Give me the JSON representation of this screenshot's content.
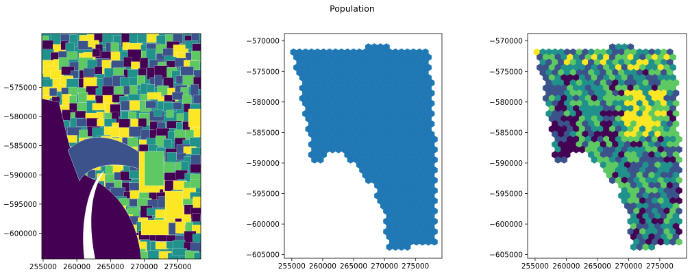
{
  "figure": {
    "suptitle": "Population"
  },
  "chart_data": [
    {
      "type": "map",
      "title": "",
      "xlabel": "",
      "ylabel": "",
      "xlim": [
        254800,
        278400
      ],
      "ylim": [
        -604400,
        -565800
      ],
      "x_ticks": [
        255000,
        260000,
        265000,
        270000,
        275000
      ],
      "x_tick_labels": [
        "255000",
        "260000",
        "265000",
        "270000",
        "275000"
      ],
      "y_ticks": [
        -575000,
        -580000,
        -585000,
        -590000,
        -595000,
        -600000
      ],
      "y_tick_labels": [
        "−575000",
        "−580000",
        "−585000",
        "−590000",
        "−595000",
        "−600000"
      ],
      "colormap": "viridis",
      "description_of_fill": "census tract polygons colored by population"
    },
    {
      "type": "map",
      "title": "",
      "xlabel": "",
      "ylabel": "",
      "xlim": [
        253800,
        279300
      ],
      "ylim": [
        -605600,
        -568800
      ],
      "x_ticks": [
        255000,
        260000,
        265000,
        270000,
        275000
      ],
      "x_tick_labels": [
        "255000",
        "260000",
        "265000",
        "270000",
        "275000"
      ],
      "y_ticks": [
        -570000,
        -575000,
        -580000,
        -585000,
        -590000,
        -595000,
        -600000,
        -605000
      ],
      "y_tick_labels": [
        "−570000",
        "−575000",
        "−580000",
        "−585000",
        "−590000",
        "−595000",
        "−600000",
        "−605000"
      ],
      "fill_color": "#1f77b4"
    },
    {
      "type": "map",
      "title": "",
      "xlabel": "",
      "ylabel": "",
      "xlim": [
        253800,
        279300
      ],
      "ylim": [
        -605600,
        -568800
      ],
      "x_ticks": [
        255000,
        260000,
        265000,
        270000,
        275000
      ],
      "x_tick_labels": [
        "255000",
        "260000",
        "265000",
        "270000",
        "275000"
      ],
      "y_ticks": [
        -570000,
        -575000,
        -580000,
        -585000,
        -590000,
        -595000,
        -600000,
        -605000
      ],
      "y_tick_labels": [
        "−570000",
        "−575000",
        "−580000",
        "−585000",
        "−590000",
        "−595000",
        "−600000",
        "−605000"
      ],
      "colormap": "viridis"
    }
  ],
  "colors": {
    "hex_blue": "#1f77b4",
    "viridis": [
      "#440154",
      "#3b528b",
      "#21918c",
      "#5ec962",
      "#fde725"
    ]
  }
}
